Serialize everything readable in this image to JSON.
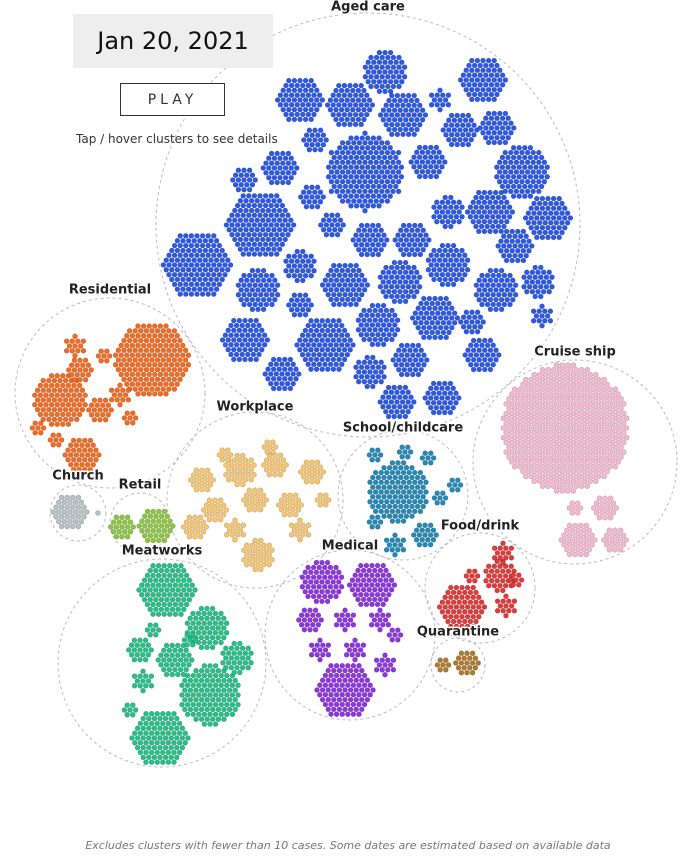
{
  "header": {
    "date": "Jan 20, 2021",
    "play_button": "PLAY",
    "hint": "Tap / hover clusters to see details"
  },
  "groups": [
    {
      "label": "Aged care",
      "color": "#2c58e6"
    },
    {
      "label": "Residential",
      "color": "#f26b21"
    },
    {
      "label": "Workplace",
      "color": "#f9c56a"
    },
    {
      "label": "School/childcare",
      "color": "#2389b8"
    },
    {
      "label": "Cruise ship",
      "color": "#f7b8cf"
    },
    {
      "label": "Church",
      "color": "#b7c0c6"
    },
    {
      "label": "Retail",
      "color": "#8cc63f"
    },
    {
      "label": "Food/drink",
      "color": "#e03a3a"
    },
    {
      "label": "Medical",
      "color": "#8e35e0"
    },
    {
      "label": "Meatworks",
      "color": "#24c08a"
    },
    {
      "label": "Quarantine",
      "color": "#b07a2c"
    }
  ],
  "footnote": "Excludes clusters with fewer than 10 cases. Some dates are estimated based on available data"
}
